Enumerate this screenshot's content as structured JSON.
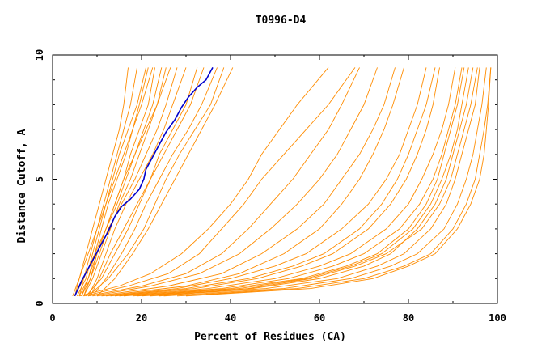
{
  "chart_data": {
    "type": "line",
    "title": "T0996-D4",
    "xlabel": "Percent of Residues (CA)",
    "ylabel": "Distance Cutoff, A",
    "xlim": [
      0,
      100
    ],
    "ylim": [
      0,
      10
    ],
    "x_ticks": [
      "0",
      "20",
      "40",
      "60",
      "80",
      "100"
    ],
    "y_ticks": [
      "0",
      "5",
      "10"
    ],
    "grid": false,
    "colors": {
      "highlight": "#0000cc",
      "others": "#ff8c00"
    },
    "highlight_series": {
      "x": [
        5.0,
        6.5,
        8.0,
        9.5,
        11.0,
        12.5,
        14.0,
        15.5,
        17.5,
        19.5,
        20.5,
        21.0,
        22.5,
        24.0,
        25.5,
        27.5,
        29.0,
        30.5,
        32.5,
        34.5,
        36.0
      ],
      "y": [
        0.3,
        0.9,
        1.4,
        1.9,
        2.4,
        2.9,
        3.5,
        3.9,
        4.2,
        4.6,
        5.0,
        5.4,
        5.9,
        6.4,
        6.9,
        7.4,
        7.9,
        8.3,
        8.7,
        9.0,
        9.5
      ]
    },
    "series": [
      {
        "y": [
          0.3,
          1.0,
          2.0,
          3.0,
          4.0,
          5.0,
          6.0,
          7.0,
          8.0,
          9.5
        ],
        "x": [
          5.0,
          6.0,
          7.5,
          9.0,
          10.5,
          12.0,
          13.5,
          15.0,
          16.0,
          17.0
        ]
      },
      {
        "y": [
          0.3,
          1.0,
          2.0,
          3.0,
          4.0,
          5.0,
          6.0,
          7.0,
          8.0,
          9.5
        ],
        "x": [
          6.0,
          7.0,
          8.5,
          10.0,
          11.5,
          13.0,
          14.5,
          16.0,
          17.5,
          19.0
        ]
      },
      {
        "y": [
          0.3,
          1.0,
          2.0,
          3.0,
          4.0,
          5.0,
          6.0,
          7.0,
          8.0,
          9.5
        ],
        "x": [
          5.5,
          7.5,
          9.0,
          10.5,
          12.0,
          13.5,
          15.0,
          17.0,
          19.0,
          21.0
        ]
      },
      {
        "y": [
          0.3,
          1.0,
          2.0,
          3.0,
          4.0,
          5.0,
          6.0,
          7.0,
          8.0,
          9.5
        ],
        "x": [
          6.5,
          8.0,
          9.5,
          11.0,
          12.5,
          14.5,
          16.5,
          18.0,
          19.5,
          21.5
        ]
      },
      {
        "y": [
          0.3,
          1.0,
          2.0,
          3.0,
          4.0,
          5.0,
          6.0,
          7.0,
          8.0,
          9.5
        ],
        "x": [
          7.0,
          8.5,
          10.0,
          12.0,
          14.0,
          16.0,
          17.5,
          19.5,
          21.5,
          23.0
        ]
      },
      {
        "y": [
          0.3,
          1.0,
          2.0,
          3.0,
          4.0,
          5.0,
          6.0,
          7.0,
          8.0,
          9.5
        ],
        "x": [
          4.5,
          6.0,
          8.0,
          10.0,
          12.0,
          14.0,
          16.0,
          18.0,
          20.0,
          22.5
        ]
      },
      {
        "y": [
          0.3,
          1.0,
          2.0,
          3.0,
          4.0,
          5.0,
          6.0,
          7.0,
          8.0,
          9.5
        ],
        "x": [
          6.0,
          8.0,
          10.0,
          12.0,
          14.5,
          16.5,
          18.5,
          20.5,
          22.5,
          24.5
        ]
      },
      {
        "y": [
          0.3,
          1.0,
          2.0,
          3.0,
          4.0,
          5.0,
          6.0,
          7.0,
          8.0,
          9.5
        ],
        "x": [
          7.0,
          9.0,
          11.0,
          13.0,
          15.0,
          17.5,
          19.5,
          21.5,
          23.5,
          25.5
        ]
      },
      {
        "y": [
          0.3,
          1.0,
          2.0,
          3.0,
          4.0,
          5.0,
          6.0,
          7.0,
          8.0,
          9.5
        ],
        "x": [
          5.0,
          7.0,
          9.5,
          12.0,
          14.0,
          16.0,
          18.5,
          21.0,
          23.5,
          26.5
        ]
      },
      {
        "y": [
          0.3,
          1.0,
          2.0,
          3.0,
          4.0,
          5.0,
          6.0,
          7.0,
          8.0,
          9.5
        ],
        "x": [
          6.5,
          8.5,
          10.5,
          12.5,
          15.5,
          18.5,
          21.0,
          23.5,
          25.5,
          28.0
        ]
      },
      {
        "y": [
          0.3,
          1.0,
          2.0,
          3.0,
          4.0,
          5.0,
          6.0,
          7.0,
          8.0,
          9.5
        ],
        "x": [
          8.0,
          10.0,
          12.0,
          14.0,
          16.5,
          19.5,
          22.5,
          25.0,
          27.0,
          30.0
        ]
      },
      {
        "y": [
          0.3,
          1.0,
          2.0,
          3.0,
          4.0,
          5.0,
          6.0,
          7.0,
          8.0,
          9.5
        ],
        "x": [
          8.5,
          10.5,
          13.0,
          16.0,
          19.0,
          22.0,
          24.0,
          27.0,
          30.0,
          32.5
        ]
      },
      {
        "y": [
          0.3,
          1.0,
          2.0,
          3.0,
          4.0,
          5.0,
          6.0,
          7.0,
          8.0,
          9.5
        ],
        "x": [
          7.5,
          11.0,
          14.0,
          17.0,
          19.5,
          22.0,
          25.0,
          28.0,
          31.0,
          34.0
        ]
      },
      {
        "y": [
          0.3,
          1.0,
          2.0,
          3.0,
          4.0,
          5.0,
          6.0,
          7.0,
          8.0,
          9.5
        ],
        "x": [
          9.0,
          12.0,
          15.5,
          18.5,
          21.0,
          24.0,
          27.0,
          30.5,
          33.5,
          37.0
        ]
      },
      {
        "y": [
          0.3,
          1.0,
          2.0,
          3.0,
          4.0,
          5.0,
          6.0,
          7.0,
          8.0,
          9.5
        ],
        "x": [
          8.0,
          12.5,
          17.0,
          20.5,
          23.0,
          25.5,
          28.5,
          32.0,
          35.5,
          38.5
        ]
      },
      {
        "y": [
          0.3,
          1.0,
          2.0,
          3.0,
          4.0,
          5.0,
          6.0,
          7.0,
          8.0,
          9.5
        ],
        "x": [
          10.0,
          14.0,
          18.0,
          21.5,
          24.5,
          27.5,
          30.5,
          33.5,
          36.5,
          40.5
        ]
      },
      {
        "y": [
          0.3,
          0.7,
          1.2,
          2.0,
          3.0,
          4.0,
          5.0,
          6.0,
          7.0,
          8.0,
          9.5
        ],
        "x": [
          6.0,
          15.0,
          22.0,
          29.0,
          35.0,
          40.0,
          44.0,
          47.0,
          51.0,
          55.0,
          62.0
        ]
      },
      {
        "y": [
          0.3,
          0.7,
          1.2,
          2.0,
          3.0,
          4.0,
          5.0,
          6.0,
          7.0,
          8.0,
          9.5
        ],
        "x": [
          7.0,
          17.0,
          26.0,
          33.0,
          38.0,
          43.0,
          47.0,
          52.0,
          57.0,
          62.0,
          68.0
        ]
      },
      {
        "y": [
          0.3,
          0.7,
          1.2,
          2.0,
          3.0,
          4.0,
          5.0,
          6.0,
          7.0,
          8.0,
          9.5
        ],
        "x": [
          8.0,
          20.0,
          30.0,
          38.0,
          44.0,
          49.0,
          54.0,
          58.0,
          62.0,
          65.0,
          69.0
        ]
      },
      {
        "y": [
          0.3,
          0.7,
          1.2,
          2.0,
          3.0,
          4.0,
          5.0,
          6.0,
          7.0,
          8.0,
          9.5
        ],
        "x": [
          9.0,
          22.0,
          33.0,
          42.0,
          49.0,
          55.0,
          60.0,
          64.0,
          67.0,
          70.0,
          73.0
        ]
      },
      {
        "y": [
          0.3,
          0.7,
          1.2,
          2.0,
          3.0,
          4.0,
          5.0,
          6.0,
          7.0,
          8.0,
          9.5
        ],
        "x": [
          10.0,
          26.0,
          38.0,
          47.0,
          55.0,
          61.0,
          65.0,
          69.0,
          72.0,
          74.5,
          77.0
        ]
      },
      {
        "y": [
          0.3,
          0.7,
          1.2,
          2.0,
          3.0,
          4.0,
          5.0,
          6.0,
          7.0,
          8.0,
          9.5
        ],
        "x": [
          11.0,
          30.0,
          42.0,
          52.0,
          60.0,
          65.0,
          69.0,
          72.0,
          74.5,
          76.5,
          79.0
        ]
      },
      {
        "y": [
          0.3,
          0.6,
          1.0,
          1.5,
          2.0,
          3.0,
          4.0,
          5.0,
          6.0,
          7.0,
          8.0,
          9.5
        ],
        "x": [
          12.0,
          28.0,
          40.0,
          50.0,
          57.0,
          65.0,
          71.0,
          75.0,
          78.0,
          80.0,
          82.0,
          84.0
        ]
      },
      {
        "y": [
          0.3,
          0.6,
          1.0,
          1.5,
          2.0,
          3.0,
          4.0,
          5.0,
          6.0,
          7.0,
          8.0,
          9.5
        ],
        "x": [
          14.0,
          32.0,
          46.0,
          56.0,
          63.0,
          71.0,
          76.0,
          79.5,
          82.0,
          84.0,
          85.5,
          87.0
        ]
      },
      {
        "y": [
          0.3,
          0.6,
          1.0,
          1.5,
          2.0,
          3.0,
          4.0,
          5.0,
          6.0,
          7.0,
          8.0,
          9.5
        ],
        "x": [
          15.0,
          35.0,
          50.0,
          60.0,
          67.0,
          75.0,
          80.0,
          83.0,
          85.5,
          87.5,
          89.0,
          90.5
        ]
      },
      {
        "y": [
          0.3,
          0.6,
          1.0,
          1.5,
          2.0,
          3.0,
          4.0,
          5.0,
          6.0,
          7.0,
          8.0,
          9.5
        ],
        "x": [
          18.0,
          40.0,
          56.0,
          66.0,
          73.0,
          80.0,
          84.0,
          86.5,
          88.0,
          89.5,
          91.0,
          92.5
        ]
      },
      {
        "y": [
          0.3,
          0.6,
          1.0,
          1.5,
          2.0,
          3.0,
          4.0,
          5.0,
          6.0,
          7.0,
          8.0,
          9.5
        ],
        "x": [
          20.0,
          45.0,
          60.0,
          70.0,
          76.0,
          82.0,
          86.0,
          88.5,
          90.0,
          91.5,
          93.0,
          94.5
        ]
      },
      {
        "y": [
          0.3,
          0.6,
          1.0,
          1.5,
          2.0,
          3.0,
          4.0,
          5.0,
          6.0,
          7.0,
          8.0,
          9.5
        ],
        "x": [
          22.0,
          48.0,
          64.0,
          73.0,
          79.0,
          85.0,
          88.5,
          90.5,
          92.0,
          93.5,
          95.0,
          96.0
        ]
      },
      {
        "y": [
          0.3,
          0.6,
          1.0,
          1.5,
          2.0,
          3.0,
          4.0,
          5.0,
          6.0,
          7.0,
          8.0,
          9.5
        ],
        "x": [
          25.0,
          52.0,
          67.0,
          76.0,
          82.0,
          88.0,
          91.0,
          93.0,
          94.5,
          95.5,
          96.5,
          97.5
        ]
      },
      {
        "y": [
          0.3,
          0.6,
          1.0,
          1.5,
          2.0,
          3.0,
          4.0,
          5.0,
          6.0,
          7.0,
          8.0,
          9.5
        ],
        "x": [
          28.0,
          55.0,
          70.0,
          79.0,
          85.0,
          90.0,
          93.0,
          95.0,
          96.0,
          97.0,
          97.8,
          98.5
        ]
      },
      {
        "y": [
          0.3,
          0.6,
          1.0,
          1.5,
          2.0,
          3.0,
          4.0,
          5.0,
          6.0,
          7.0,
          8.0,
          9.5
        ],
        "x": [
          24.0,
          44.0,
          58.0,
          68.0,
          75.0,
          83.0,
          87.0,
          89.5,
          91.0,
          92.5,
          94.0,
          95.5
        ]
      },
      {
        "y": [
          0.3,
          0.6,
          1.0,
          1.5,
          2.0,
          3.0,
          4.0,
          5.0,
          6.0,
          7.0,
          8.0,
          9.5
        ],
        "x": [
          16.0,
          38.0,
          53.0,
          63.0,
          70.0,
          78.0,
          82.5,
          85.5,
          87.5,
          89.0,
          90.5,
          92.0
        ]
      },
      {
        "y": [
          0.3,
          0.6,
          1.0,
          1.5,
          2.0,
          3.0,
          4.0,
          5.0,
          6.0,
          7.0,
          8.0,
          9.5
        ],
        "x": [
          13.0,
          30.0,
          44.0,
          54.0,
          61.0,
          69.0,
          74.0,
          77.5,
          80.0,
          82.0,
          84.0,
          86.0
        ]
      },
      {
        "y": [
          0.3,
          0.6,
          1.0,
          1.5,
          2.0,
          3.0,
          4.0,
          5.0,
          6.0,
          7.0,
          8.0,
          9.5
        ],
        "x": [
          30.0,
          58.0,
          72.0,
          80.0,
          86.0,
          91.0,
          94.0,
          96.0,
          97.0,
          97.5,
          98.0,
          98.5
        ]
      },
      {
        "y": [
          0.3,
          0.6,
          1.0,
          1.5,
          2.0,
          3.0,
          4.0,
          5.0,
          6.0,
          7.0,
          8.0,
          9.5
        ],
        "x": [
          19.0,
          42.0,
          57.0,
          67.0,
          74.0,
          81.0,
          85.0,
          87.5,
          89.5,
          91.0,
          92.0,
          93.5
        ]
      }
    ]
  }
}
